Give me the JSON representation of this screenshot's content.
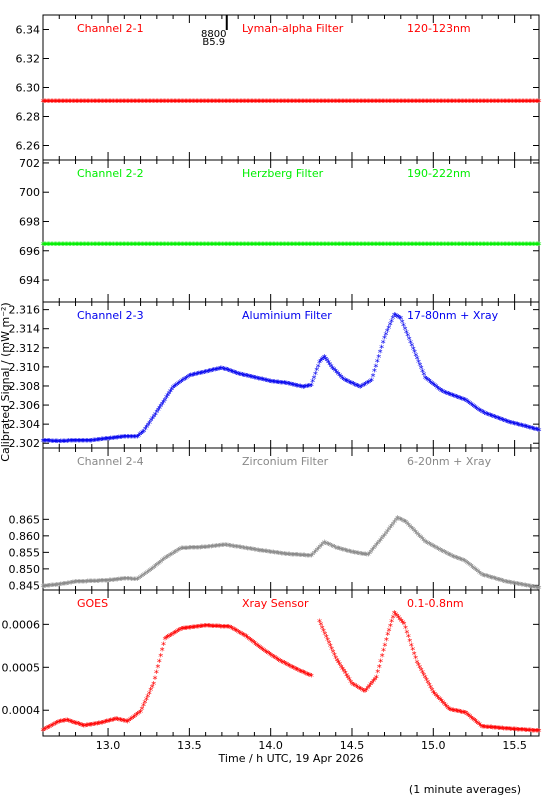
{
  "ylabel": "Calibrated Signal / (mW m⁻²)",
  "xlabel": "Time / h UTC, 19 Apr 2026",
  "footnote": "(1 minute averages)",
  "xlim": [
    12.6,
    15.65
  ],
  "xticks": [
    "13.0",
    "13.5",
    "14.0",
    "14.5",
    "15.0",
    "15.5"
  ],
  "marker_label_top": "8800",
  "marker_label_bottom": "B5.9",
  "chart_data": [
    {
      "type": "scatter",
      "name": "Channel 2-1",
      "filter": "Lyman-alpha Filter",
      "band": "120-123nm",
      "color": "#ff0000",
      "ylim": [
        6.25,
        6.35
      ],
      "yticks": [
        "6.26",
        "6.28",
        "6.30",
        "6.32",
        "6.34"
      ],
      "points": [
        [
          12.6,
          6.29
        ],
        [
          13.0,
          6.29
        ],
        [
          13.5,
          6.29
        ],
        [
          14.0,
          6.29
        ],
        [
          14.5,
          6.29
        ],
        [
          15.0,
          6.29
        ],
        [
          15.65,
          6.29
        ]
      ]
    },
    {
      "type": "scatter",
      "name": "Channel 2-2",
      "filter": "Herzberg Filter",
      "band": "190-222nm",
      "color": "#00ee00",
      "ylim": [
        692.5,
        702.2
      ],
      "yticks": [
        "694",
        "696",
        "698",
        "700",
        "702"
      ],
      "points": [
        [
          12.6,
          696.4
        ],
        [
          13.0,
          696.4
        ],
        [
          13.5,
          696.4
        ],
        [
          14.0,
          696.4
        ],
        [
          14.5,
          696.4
        ],
        [
          15.0,
          696.4
        ],
        [
          15.65,
          696.4
        ]
      ]
    },
    {
      "type": "scatter",
      "name": "Channel 2-3",
      "filter": "Aluminium Filter",
      "band": "17-80nm + Xray",
      "color": "#0000ee",
      "ylim": [
        2.3015,
        2.3168
      ],
      "yticks": [
        "2.302",
        "2.304",
        "2.306",
        "2.308",
        "2.310",
        "2.312",
        "2.314",
        "2.316"
      ],
      "points": [
        [
          12.6,
          2.3022
        ],
        [
          12.7,
          2.3021
        ],
        [
          12.8,
          2.3022
        ],
        [
          12.9,
          2.3022
        ],
        [
          13.0,
          2.3024
        ],
        [
          13.1,
          2.3026
        ],
        [
          13.18,
          2.3026
        ],
        [
          13.22,
          2.3032
        ],
        [
          13.3,
          2.3052
        ],
        [
          13.4,
          2.3078
        ],
        [
          13.5,
          2.309
        ],
        [
          13.6,
          2.3094
        ],
        [
          13.7,
          2.3098
        ],
        [
          13.8,
          2.3092
        ],
        [
          13.9,
          2.3088
        ],
        [
          14.0,
          2.3084
        ],
        [
          14.1,
          2.3082
        ],
        [
          14.2,
          2.3078
        ],
        [
          14.25,
          2.308
        ],
        [
          14.3,
          2.3104
        ],
        [
          14.33,
          2.311
        ],
        [
          14.38,
          2.3098
        ],
        [
          14.45,
          2.3086
        ],
        [
          14.55,
          2.3078
        ],
        [
          14.62,
          2.3085
        ],
        [
          14.7,
          2.313
        ],
        [
          14.76,
          2.3154
        ],
        [
          14.8,
          2.315
        ],
        [
          14.86,
          2.3125
        ],
        [
          14.95,
          2.3088
        ],
        [
          15.05,
          2.3074
        ],
        [
          15.2,
          2.3064
        ],
        [
          15.3,
          2.3052
        ],
        [
          15.45,
          2.3042
        ],
        [
          15.65,
          2.3033
        ]
      ]
    },
    {
      "type": "scatter",
      "name": "Channel 2-4",
      "filter": "Zirconium Filter",
      "band": "6-20nm + Xray",
      "color": "#888888",
      "ylim": [
        0.8436,
        0.8866
      ],
      "yticks": [
        "0.845",
        "0.850",
        "0.855",
        "0.860",
        "0.865"
      ],
      "points": [
        [
          12.6,
          0.8445
        ],
        [
          12.7,
          0.845
        ],
        [
          12.8,
          0.8458
        ],
        [
          12.9,
          0.846
        ],
        [
          13.0,
          0.8462
        ],
        [
          13.1,
          0.8468
        ],
        [
          13.18,
          0.8466
        ],
        [
          13.25,
          0.849
        ],
        [
          13.35,
          0.853
        ],
        [
          13.45,
          0.856
        ],
        [
          13.6,
          0.8563
        ],
        [
          13.72,
          0.857
        ],
        [
          13.85,
          0.856
        ],
        [
          13.95,
          0.8552
        ],
        [
          14.1,
          0.8542
        ],
        [
          14.25,
          0.8537
        ],
        [
          14.33,
          0.8578
        ],
        [
          14.4,
          0.8562
        ],
        [
          14.5,
          0.8548
        ],
        [
          14.6,
          0.854
        ],
        [
          14.7,
          0.86
        ],
        [
          14.78,
          0.8652
        ],
        [
          14.83,
          0.864
        ],
        [
          14.95,
          0.858
        ],
        [
          15.1,
          0.854
        ],
        [
          15.2,
          0.852
        ],
        [
          15.3,
          0.848
        ],
        [
          15.45,
          0.8458
        ],
        [
          15.65,
          0.844
        ]
      ]
    },
    {
      "type": "scatter",
      "name": "GOES",
      "filter": "Xray Sensor",
      "band": "0.1-0.8nm",
      "color": "#ff0000",
      "ylim": [
        0.00034,
        0.00068
      ],
      "yticks": [
        "0.0004",
        "0.0005",
        "0.0006"
      ],
      "segments": [
        [
          [
            12.6,
            0.000352
          ],
          [
            12.7,
            0.000372
          ],
          [
            12.75,
            0.000375
          ],
          [
            12.85,
            0.000362
          ],
          [
            12.95,
            0.000368
          ],
          [
            13.05,
            0.000378
          ],
          [
            13.12,
            0.000372
          ],
          [
            13.2,
            0.000395
          ],
          [
            13.28,
            0.00046
          ],
          [
            13.35,
            0.000565
          ],
          [
            13.45,
            0.000588
          ],
          [
            13.6,
            0.000595
          ],
          [
            13.75,
            0.000592
          ],
          [
            13.85,
            0.00057
          ],
          [
            13.95,
            0.00054
          ],
          [
            14.05,
            0.000515
          ],
          [
            14.15,
            0.000495
          ],
          [
            14.25,
            0.000478
          ]
        ],
        [
          [
            14.3,
            0.000605
          ],
          [
            14.4,
            0.00052
          ],
          [
            14.5,
            0.00046
          ],
          [
            14.58,
            0.000442
          ],
          [
            14.65,
            0.000475
          ],
          [
            14.72,
            0.000575
          ],
          [
            14.76,
            0.000625
          ],
          [
            14.82,
            0.0006
          ],
          [
            14.9,
            0.00051
          ],
          [
            15.0,
            0.00044
          ],
          [
            15.1,
            0.0004
          ],
          [
            15.2,
            0.000392
          ],
          [
            15.3,
            0.00036
          ],
          [
            15.45,
            0.000355
          ],
          [
            15.65,
            0.00035
          ]
        ]
      ]
    }
  ]
}
